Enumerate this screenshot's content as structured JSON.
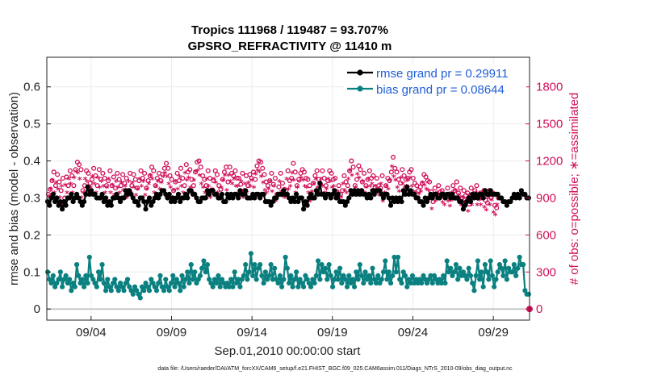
{
  "chart_data": {
    "type": "line",
    "title_line1": "Tropics 111968 / 119487 = 93.707%",
    "title_line2": "GPSRO_REFRACTIVITY @ 11410 m",
    "xlabel": "Sep.01,2010 00:00:00 start",
    "ylabel_left": "rmse and bias (model - observation)",
    "ylabel_right": "# of obs: o=possible; ∗=assimilated",
    "footnote": "data file: /Users/raeder/DAI/ATM_forcXX/CAM6_setup/f.e21.FHIST_BGC.f09_025.CAM6assim.011/Diags_NTrS_2010-09/obs_diag_output.nc",
    "x_tick_labels": [
      "09/04",
      "09/09",
      "09/14",
      "09/19",
      "09/24",
      "09/29"
    ],
    "x_tick_days": [
      4,
      9,
      14,
      19,
      24,
      29
    ],
    "xlim_days": [
      1.25,
      31.25
    ],
    "ylim_left": [
      -0.03,
      0.68
    ],
    "yticks_left": [
      "0",
      "0.1",
      "0.2",
      "0.3",
      "0.4",
      "0.5",
      "0.6"
    ],
    "ylim_right": [
      -90,
      2040
    ],
    "yticks_right": [
      "0",
      "300",
      "600",
      "900",
      "1200",
      "1500",
      "1800"
    ],
    "legend": [
      {
        "label": "rmse grand pr = 0.29911",
        "color": "#000000"
      },
      {
        "label": "bias grand pr = 0.08644",
        "color": "#0a8080"
      }
    ],
    "colors": {
      "rmse": "#000000",
      "bias": "#0a8080",
      "obs": "#d0105a",
      "zero_line": "#c8c8c8"
    },
    "series": [
      {
        "name": "rmse",
        "values": [
          0.29,
          0.28,
          0.3,
          0.31,
          0.29,
          0.3,
          0.28,
          0.29,
          0.27,
          0.29,
          0.28,
          0.3,
          0.3,
          0.31,
          0.29,
          0.3,
          0.31,
          0.3,
          0.29,
          0.28,
          0.29,
          0.31,
          0.33,
          0.31,
          0.32,
          0.31,
          0.31,
          0.3,
          0.3,
          0.3,
          0.31,
          0.29,
          0.3,
          0.28,
          0.29,
          0.28,
          0.3,
          0.3,
          0.31,
          0.3,
          0.29,
          0.3,
          0.3,
          0.32,
          0.31,
          0.32,
          0.31,
          0.3,
          0.29,
          0.29,
          0.28,
          0.3,
          0.3,
          0.29,
          0.27,
          0.29,
          0.3,
          0.28,
          0.29,
          0.3,
          0.31,
          0.3,
          0.31,
          0.32,
          0.32,
          0.31,
          0.3,
          0.31,
          0.29,
          0.3,
          0.29,
          0.3,
          0.31,
          0.29,
          0.3,
          0.3,
          0.31,
          0.3,
          0.32,
          0.32,
          0.31,
          0.31,
          0.3,
          0.29,
          0.29,
          0.3,
          0.3,
          0.3,
          0.32,
          0.31,
          0.32,
          0.32,
          0.31,
          0.31,
          0.3,
          0.3,
          0.31,
          0.29,
          0.29,
          0.31,
          0.3,
          0.31,
          0.3,
          0.31,
          0.31,
          0.3,
          0.32,
          0.31,
          0.31,
          0.32,
          0.3,
          0.3,
          0.3,
          0.31,
          0.3,
          0.31,
          0.31,
          0.3,
          0.31,
          0.31,
          0.29,
          0.29,
          0.29,
          0.28,
          0.29,
          0.3,
          0.3,
          0.31,
          0.31,
          0.31,
          0.32,
          0.31,
          0.31,
          0.3,
          0.29,
          0.3,
          0.29,
          0.31,
          0.29,
          0.3,
          0.3,
          0.27,
          0.29,
          0.28,
          0.3,
          0.31,
          0.3,
          0.3,
          0.32,
          0.31,
          0.34,
          0.31,
          0.31,
          0.3,
          0.31,
          0.31,
          0.3,
          0.31,
          0.32,
          0.3,
          0.31,
          0.29,
          0.29,
          0.29,
          0.28,
          0.29,
          0.3,
          0.32,
          0.31,
          0.32,
          0.31,
          0.32,
          0.31,
          0.32,
          0.31,
          0.31,
          0.3,
          0.31,
          0.3,
          0.32,
          0.31,
          0.32,
          0.32,
          0.32,
          0.31,
          0.3,
          0.31,
          0.31,
          0.3,
          0.28,
          0.3,
          0.29,
          0.3,
          0.29,
          0.3,
          0.29,
          0.32,
          0.31,
          0.33,
          0.31,
          0.32,
          0.31,
          0.31,
          0.3,
          0.3,
          0.29,
          0.29,
          0.28,
          0.3,
          0.29,
          0.3,
          0.31,
          0.3,
          0.31,
          0.31,
          0.3,
          0.3,
          0.31,
          0.31,
          0.3,
          0.31,
          0.31,
          0.3,
          0.31,
          0.3,
          0.3,
          0.3,
          0.29,
          0.29,
          0.27,
          0.28,
          0.29,
          0.3,
          0.29,
          0.31,
          0.3,
          0.31,
          0.3,
          0.31,
          0.31,
          0.3,
          0.32,
          0.31,
          0.31,
          0.32,
          0.31,
          0.31,
          0.31,
          0.31,
          0.3,
          0.3,
          0.29,
          0.29,
          0.28,
          0.29,
          0.29,
          0.3,
          0.31,
          0.3,
          0.31,
          0.3,
          0.32,
          0.31,
          0.31,
          0.3,
          0.3
        ]
      },
      {
        "name": "bias",
        "values": [
          0.1,
          0.08,
          0.07,
          0.09,
          0.06,
          0.07,
          0.08,
          0.1,
          0.06,
          0.08,
          0.09,
          0.07,
          0.08,
          0.05,
          0.07,
          0.06,
          0.12,
          0.09,
          0.07,
          0.08,
          0.06,
          0.09,
          0.07,
          0.14,
          0.09,
          0.08,
          0.07,
          0.06,
          0.1,
          0.08,
          0.12,
          0.07,
          0.05,
          0.08,
          0.06,
          0.05,
          0.07,
          0.08,
          0.06,
          0.05,
          0.07,
          0.06,
          0.05,
          0.07,
          0.08,
          0.06,
          0.05,
          0.04,
          0.06,
          0.05,
          0.04,
          0.03,
          0.06,
          0.05,
          0.07,
          0.06,
          0.05,
          0.08,
          0.07,
          0.06,
          0.05,
          0.07,
          0.09,
          0.06,
          0.05,
          0.08,
          0.06,
          0.05,
          0.07,
          0.09,
          0.06,
          0.08,
          0.07,
          0.05,
          0.09,
          0.06,
          0.08,
          0.1,
          0.07,
          0.12,
          0.08,
          0.1,
          0.07,
          0.08,
          0.09,
          0.11,
          0.13,
          0.1,
          0.12,
          0.08,
          0.07,
          0.06,
          0.08,
          0.07,
          0.09,
          0.06,
          0.08,
          0.07,
          0.06,
          0.07,
          0.06,
          0.08,
          0.06,
          0.1,
          0.07,
          0.08,
          0.06,
          0.08,
          0.09,
          0.12,
          0.08,
          0.1,
          0.15,
          0.09,
          0.12,
          0.08,
          0.11,
          0.12,
          0.09,
          0.07,
          0.1,
          0.08,
          0.09,
          0.12,
          0.08,
          0.11,
          0.08,
          0.07,
          0.09,
          0.06,
          0.08,
          0.14,
          0.11,
          0.07,
          0.09,
          0.06,
          0.08,
          0.1,
          0.06,
          0.08,
          0.07,
          0.06,
          0.09,
          0.08,
          0.07,
          0.06,
          0.08,
          0.07,
          0.09,
          0.13,
          0.08,
          0.12,
          0.1,
          0.11,
          0.08,
          0.12,
          0.09,
          0.06,
          0.08,
          0.1,
          0.08,
          0.11,
          0.07,
          0.09,
          0.08,
          0.06,
          0.09,
          0.07,
          0.08,
          0.06,
          0.1,
          0.08,
          0.12,
          0.09,
          0.07,
          0.1,
          0.08,
          0.09,
          0.07,
          0.11,
          0.08,
          0.07,
          0.09,
          0.07,
          0.08,
          0.1,
          0.13,
          0.08,
          0.1,
          0.07,
          0.09,
          0.14,
          0.1,
          0.14,
          0.08,
          0.07,
          0.1,
          0.09,
          0.06,
          0.08,
          0.07,
          0.09,
          0.07,
          0.08,
          0.07,
          0.08,
          0.07,
          0.09,
          0.08,
          0.07,
          0.08,
          0.09,
          0.07,
          0.09,
          0.08,
          0.07,
          0.08,
          0.07,
          0.09,
          0.07,
          0.13,
          0.1,
          0.11,
          0.09,
          0.1,
          0.12,
          0.08,
          0.11,
          0.09,
          0.1,
          0.09,
          0.08,
          0.11,
          0.09,
          0.07,
          0.05,
          0.09,
          0.13,
          0.08,
          0.1,
          0.06,
          0.12,
          0.1,
          0.08,
          0.13,
          0.09,
          0.06,
          0.08,
          0.1,
          0.12,
          0.11,
          0.09,
          0.13,
          0.08,
          0.11,
          0.1,
          0.1,
          0.12,
          0.09,
          0.11,
          0.14,
          0.12,
          0.12,
          0.05,
          0.04,
          0.04
        ]
      },
      {
        "name": "obs_possible",
        "values": [
          930,
          970,
          1040,
          1110,
          1000,
          1090,
          1030,
          960,
          1060,
          900,
          1070,
          1000,
          1120,
          1080,
          1000,
          1130,
          1190,
          1170,
          1130,
          960,
          1000,
          1120,
          1100,
          1020,
          1050,
          1140,
          1080,
          1000,
          1130,
          1050,
          1100,
          1060,
          1000,
          1040,
          1120,
          1000,
          1070,
          980,
          1100,
          1050,
          1000,
          1090,
          1020,
          1060,
          960,
          1100,
          1000,
          1090,
          1050,
          980,
          1040,
          1120,
          1060,
          1100,
          980,
          1040,
          1080,
          1150,
          1120,
          1000,
          1060,
          1100,
          1040,
          1090,
          1140,
          1180,
          1140,
          1080,
          1050,
          960,
          1030,
          1100,
          1040,
          1140,
          1060,
          1000,
          1170,
          1110,
          1130,
          1050,
          1000,
          1110,
          1190,
          1200,
          1150,
          1080,
          1050,
          1000,
          1120,
          1060,
          960,
          1040,
          1120,
          1090,
          1000,
          970,
          1050,
          1110,
          1150,
          1030,
          1150,
          1100,
          1080,
          1120,
          1060,
          1060,
          1010,
          1100,
          960,
          1080,
          1000,
          1090,
          1060,
          1110,
          1050,
          1160,
          1200,
          1190,
          1140,
          1090,
          1030,
          1000,
          1040,
          1100,
          1010,
          1060,
          930,
          990,
          1100,
          1020,
          970,
          960,
          1120,
          1040,
          1060,
          1180,
          1110,
          1000,
          1050,
          1100,
          1130,
          1110,
          1060,
          1050,
          1000,
          930,
          1020,
          1080,
          1120,
          1050,
          1010,
          1120,
          1060,
          1000,
          1040,
          1120,
          1100,
          1050,
          1060,
          950,
          1000,
          930,
          960,
          1080,
          1030,
          1000,
          1120,
          1200,
          1150,
          1000,
          1050,
          1160,
          1130,
          1030,
          1100,
          1000,
          1050,
          1120,
          1060,
          1080,
          990,
          1060,
          1000,
          980,
          1080,
          930,
          1000,
          1060,
          1040,
          1110,
          1230,
          1140,
          1110,
          1050,
          1020,
          1130,
          1080,
          1050,
          1060,
          1110,
          1130,
          1060,
          1020,
          1000,
          960,
          990,
          1020,
          1090,
          1070,
          1040,
          1030,
          950,
          870,
          980,
          930,
          1000,
          950,
          960,
          920,
          900,
          980,
          930,
          890,
          1000,
          960,
          1030,
          940,
          980,
          900,
          960,
          920,
          940,
          850,
          980,
          900,
          960,
          1000,
          900,
          940,
          900,
          960,
          880,
          860,
          960,
          900,
          940,
          840,
          820,
          900
        ]
      },
      {
        "name": "obs_assimilated",
        "values": [
          870,
          910,
          970,
          1040,
          940,
          1020,
          970,
          900,
          990,
          840,
          1000,
          940,
          1050,
          1010,
          940,
          1060,
          1110,
          1100,
          1050,
          900,
          940,
          1050,
          1030,
          950,
          980,
          1070,
          1010,
          940,
          1060,
          980,
          1030,
          990,
          940,
          980,
          1050,
          940,
          1000,
          920,
          1030,
          980,
          940,
          1020,
          960,
          990,
          900,
          1030,
          940,
          1020,
          980,
          920,
          970,
          1050,
          990,
          1030,
          920,
          970,
          1010,
          1080,
          1050,
          940,
          990,
          1030,
          970,
          1020,
          1070,
          1100,
          1070,
          1010,
          980,
          900,
          960,
          1030,
          970,
          1070,
          990,
          940,
          1100,
          1040,
          1060,
          980,
          940,
          1040,
          1110,
          1120,
          1080,
          1010,
          980,
          940,
          1050,
          990,
          900,
          970,
          1050,
          1020,
          940,
          910,
          980,
          1040,
          1080,
          960,
          1080,
          1030,
          1010,
          1050,
          990,
          990,
          940,
          1030,
          900,
          1010,
          940,
          1020,
          990,
          1040,
          980,
          1090,
          1120,
          1110,
          1070,
          1020,
          960,
          940,
          970,
          1030,
          950,
          990,
          870,
          930,
          1030,
          950,
          910,
          900,
          1050,
          970,
          990,
          1100,
          1040,
          940,
          980,
          1030,
          1060,
          1040,
          990,
          980,
          940,
          870,
          950,
          1010,
          1050,
          980,
          940,
          1050,
          990,
          940,
          970,
          1050,
          1030,
          980,
          990,
          890,
          940,
          870,
          900,
          1010,
          960,
          940,
          1050,
          1120,
          1080,
          940,
          980,
          1090,
          1060,
          960,
          1030,
          940,
          980,
          1050,
          990,
          1010,
          930,
          990,
          940,
          920,
          1010,
          870,
          940,
          990,
          970,
          1040,
          1150,
          1070,
          1040,
          980,
          950,
          1060,
          1010,
          980,
          990,
          1040,
          1060,
          990,
          950,
          940,
          900,
          930,
          950,
          1020,
          1000,
          970,
          960,
          890,
          810,
          910,
          870,
          940,
          890,
          900,
          860,
          840,
          920,
          870,
          830,
          940,
          900,
          960,
          880,
          920,
          840,
          900,
          860,
          880,
          790,
          920,
          840,
          900,
          940,
          840,
          880,
          840,
          900,
          820,
          800,
          900,
          840,
          880,
          780,
          760,
          840
        ]
      }
    ]
  }
}
